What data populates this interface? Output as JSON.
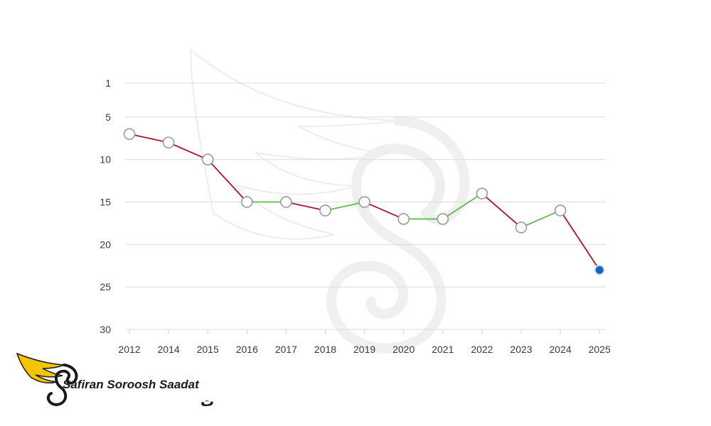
{
  "brand": {
    "name_latin": "Safiran Soroosh Saadat",
    "name_persian": "سفیران سروش سعادت"
  },
  "colors": {
    "decline": "#b0122e",
    "improve": "#5cbf4a",
    "latest_point": "#1565c0",
    "marker_fill": "#ffffff",
    "marker_stroke": "#9a9a9a",
    "grid": "#dcdcdc",
    "logo_wing": "#f5c400"
  },
  "chart_data": {
    "type": "line",
    "title": "",
    "xlabel": "",
    "ylabel": "",
    "y_axis_inverted": true,
    "ylim": [
      1,
      30
    ],
    "yticks": [
      1,
      5,
      10,
      15,
      20,
      25,
      30
    ],
    "grid": true,
    "legend": "none",
    "categories": [
      "2012",
      "2014",
      "2015",
      "2016",
      "2017",
      "2018",
      "2019",
      "2020",
      "2021",
      "2022",
      "2023",
      "2024",
      "2025"
    ],
    "series": [
      {
        "values": [
          7,
          8,
          10,
          15,
          15,
          16,
          15,
          17,
          17,
          14,
          18,
          16,
          23
        ]
      }
    ],
    "segment_colors_rule": "red when rank number increases (worse), green when it stays or decreases (better)",
    "highlight_last_point": true
  }
}
